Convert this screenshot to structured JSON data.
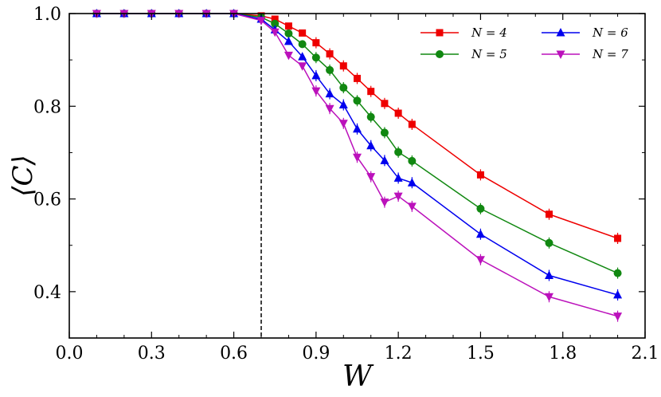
{
  "chart_data": {
    "type": "line",
    "title": "",
    "xlabel": "W",
    "ylabel": "⟨C⟩",
    "xlim": [
      0.0,
      2.1
    ],
    "ylim": [
      0.3,
      1.0
    ],
    "x_ticks": [
      0.0,
      0.3,
      0.6,
      0.9,
      1.2,
      1.5,
      1.8,
      2.1
    ],
    "x_tick_labels": [
      "0.0",
      "0.3",
      "0.6",
      "0.9",
      "1.2",
      "1.5",
      "1.8",
      "2.1"
    ],
    "y_ticks": [
      0.4,
      0.6,
      0.8,
      1.0
    ],
    "y_tick_labels": [
      "0.4",
      "0.6",
      "0.8",
      "1.0"
    ],
    "grid": false,
    "vertical_line": {
      "x": 0.7,
      "style": "dashed",
      "color": "#000000"
    },
    "legend": {
      "placement": "top-right",
      "columns": 2
    },
    "series": [
      {
        "name": "N = 4",
        "label_var": "N",
        "label_val": "4",
        "color": "#ee0000",
        "marker": "square",
        "x": [
          0.1,
          0.2,
          0.3,
          0.4,
          0.5,
          0.6,
          0.7,
          0.75,
          0.8,
          0.85,
          0.9,
          0.95,
          1.0,
          1.05,
          1.1,
          1.15,
          1.2,
          1.25,
          1.5,
          1.75,
          2.0
        ],
        "y": [
          1.0,
          1.0,
          1.0,
          1.0,
          1.0,
          1.0,
          0.995,
          0.988,
          0.973,
          0.958,
          0.937,
          0.913,
          0.887,
          0.86,
          0.832,
          0.806,
          0.785,
          0.761,
          0.652,
          0.567,
          0.515
        ]
      },
      {
        "name": "N = 5",
        "label_var": "N",
        "label_val": "5",
        "color": "#118811",
        "marker": "circle",
        "x": [
          0.1,
          0.2,
          0.3,
          0.4,
          0.5,
          0.6,
          0.7,
          0.75,
          0.8,
          0.85,
          0.9,
          0.95,
          1.0,
          1.05,
          1.1,
          1.15,
          1.2,
          1.25,
          1.5,
          1.75,
          2.0
        ],
        "y": [
          1.0,
          1.0,
          1.0,
          1.0,
          1.0,
          1.0,
          0.992,
          0.978,
          0.957,
          0.934,
          0.905,
          0.878,
          0.84,
          0.812,
          0.777,
          0.743,
          0.701,
          0.682,
          0.579,
          0.505,
          0.44
        ]
      },
      {
        "name": "N = 6",
        "label_var": "N",
        "label_val": "6",
        "color": "#0000ee",
        "marker": "triangle-up",
        "x": [
          0.1,
          0.2,
          0.3,
          0.4,
          0.5,
          0.6,
          0.7,
          0.75,
          0.8,
          0.85,
          0.9,
          0.95,
          1.0,
          1.05,
          1.1,
          1.15,
          1.2,
          1.25,
          1.5,
          1.75,
          2.0
        ],
        "y": [
          1.0,
          1.0,
          1.0,
          1.0,
          1.0,
          1.0,
          0.988,
          0.965,
          0.94,
          0.907,
          0.866,
          0.827,
          0.803,
          0.751,
          0.715,
          0.683,
          0.645,
          0.635,
          0.524,
          0.435,
          0.393
        ]
      },
      {
        "name": "N = 7",
        "label_var": "N",
        "label_val": "7",
        "color": "#bb11bb",
        "marker": "triangle-down",
        "x": [
          0.1,
          0.2,
          0.3,
          0.4,
          0.5,
          0.6,
          0.7,
          0.75,
          0.8,
          0.85,
          0.9,
          0.95,
          1.0,
          1.05,
          1.1,
          1.15,
          1.2,
          1.25,
          1.5,
          1.75,
          2.0
        ],
        "y": [
          1.0,
          1.0,
          1.0,
          1.0,
          1.0,
          1.0,
          0.985,
          0.96,
          0.91,
          0.887,
          0.833,
          0.795,
          0.763,
          0.69,
          0.648,
          0.593,
          0.606,
          0.584,
          0.469,
          0.389,
          0.347
        ]
      }
    ]
  }
}
